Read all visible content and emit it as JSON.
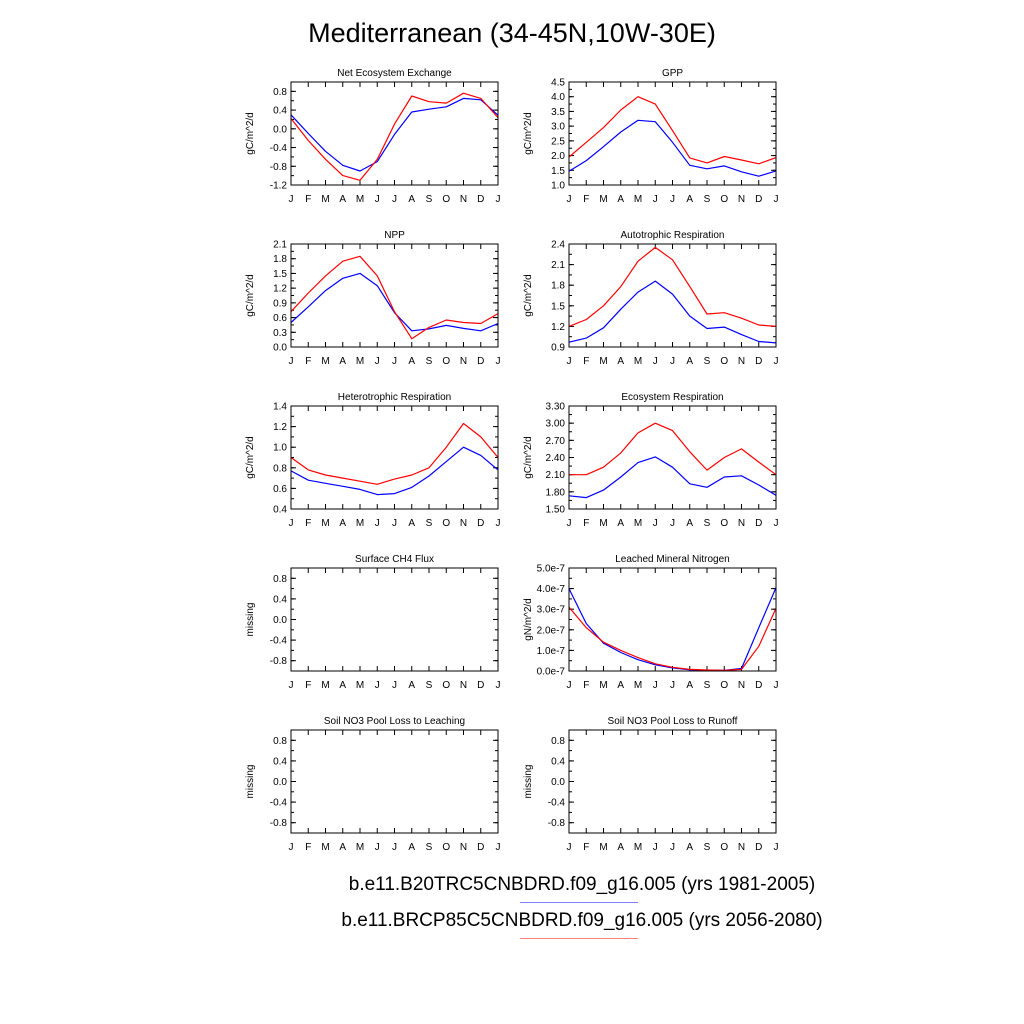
{
  "title": "Mediterranean (34-45N,10W-30E)",
  "months": [
    "J",
    "F",
    "M",
    "A",
    "M",
    "J",
    "J",
    "A",
    "S",
    "O",
    "N",
    "D",
    "J"
  ],
  "colors": {
    "case1": "#0000ff",
    "case2": "#ff0000",
    "legend1": "#8080ff",
    "legend2": "#ff8080",
    "axis": "#000000"
  },
  "legend": {
    "case1_label": "b.e11.B20TRC5CNBDRD.f09_g16.005 (yrs 1981-2005)",
    "case2_label": "b.e11.BRCP85C5CNBDRD.f09_g16.005 (yrs 2056-2080)"
  },
  "chart_data": [
    {
      "type": "line",
      "title": "Net Ecosystem Exchange",
      "ylabel": "gC/m^2/d",
      "ylim": [
        -1.2,
        1.0
      ],
      "yticks": [
        -1.2,
        -0.8,
        -0.4,
        0,
        0.4,
        0.8
      ],
      "yticklabels": [
        "-1.2",
        "-0.8",
        "-0.4",
        "0.0",
        "0.4",
        "0.8"
      ],
      "series": [
        {
          "name": "b.e11.B20TRC5CNBDRD.f09_g16.005 (yrs 1981-2005)",
          "values": [
            0.3,
            -0.1,
            -0.48,
            -0.78,
            -0.9,
            -0.7,
            -0.12,
            0.36,
            0.42,
            0.47,
            0.65,
            0.62,
            0.29
          ]
        },
        {
          "name": "b.e11.BRCP85C5CNBDRD.f09_g16.005 (yrs 2056-2080)",
          "values": [
            0.22,
            -0.25,
            -0.65,
            -1.0,
            -1.1,
            -0.65,
            0.1,
            0.7,
            0.58,
            0.55,
            0.76,
            0.65,
            0.24
          ]
        }
      ]
    },
    {
      "type": "line",
      "title": "GPP",
      "ylabel": "gC/m^2/d",
      "ylim": [
        1.0,
        4.5
      ],
      "yticks": [
        1.0,
        1.5,
        2.0,
        2.5,
        3.0,
        3.5,
        4.0,
        4.5
      ],
      "yticklabels": [
        "1.0",
        "1.5",
        "2.0",
        "2.5",
        "3.0",
        "3.5",
        "4.0",
        "4.5"
      ],
      "series": [
        {
          "name": "b.e11.B20TRC5CNBDRD.f09_g16.005 (yrs 1981-2005)",
          "values": [
            1.47,
            1.83,
            2.3,
            2.8,
            3.2,
            3.15,
            2.45,
            1.67,
            1.55,
            1.65,
            1.45,
            1.3,
            1.48
          ]
        },
        {
          "name": "b.e11.BRCP85C5CNBDRD.f09_g16.005 (yrs 2056-2080)",
          "values": [
            1.95,
            2.45,
            2.95,
            3.55,
            4.0,
            3.75,
            2.85,
            1.92,
            1.75,
            1.97,
            1.85,
            1.72,
            1.93
          ]
        }
      ]
    },
    {
      "type": "line",
      "title": "NPP",
      "ylabel": "gC/m^2/d",
      "ylim": [
        0.0,
        2.1
      ],
      "yticks": [
        0,
        0.3,
        0.6,
        0.9,
        1.2,
        1.5,
        1.8,
        2.1
      ],
      "yticklabels": [
        "0.0",
        "0.3",
        "0.6",
        "0.9",
        "1.2",
        "1.5",
        "1.8",
        "2.1"
      ],
      "series": [
        {
          "name": "b.e11.B20TRC5CNBDRD.f09_g16.005 (yrs 1981-2005)",
          "values": [
            0.5,
            0.82,
            1.15,
            1.4,
            1.5,
            1.25,
            0.7,
            0.33,
            0.37,
            0.44,
            0.38,
            0.33,
            0.48
          ]
        },
        {
          "name": "b.e11.BRCP85C5CNBDRD.f09_g16.005 (yrs 2056-2080)",
          "values": [
            0.72,
            1.1,
            1.45,
            1.75,
            1.85,
            1.45,
            0.72,
            0.17,
            0.4,
            0.55,
            0.5,
            0.48,
            0.68
          ]
        }
      ]
    },
    {
      "type": "line",
      "title": "Autotrophic Respiration",
      "ylabel": "gC/m^2/d",
      "ylim": [
        0.9,
        2.4
      ],
      "yticks": [
        0.9,
        1.2,
        1.5,
        1.8,
        2.1,
        2.4
      ],
      "yticklabels": [
        "0.9",
        "1.2",
        "1.5",
        "1.8",
        "2.1",
        "2.4"
      ],
      "series": [
        {
          "name": "b.e11.B20TRC5CNBDRD.f09_g16.005 (yrs 1981-2005)",
          "values": [
            0.97,
            1.03,
            1.18,
            1.45,
            1.7,
            1.86,
            1.67,
            1.35,
            1.17,
            1.19,
            1.08,
            0.98,
            0.96
          ]
        },
        {
          "name": "b.e11.BRCP85C5CNBDRD.f09_g16.005 (yrs 2056-2080)",
          "values": [
            1.2,
            1.3,
            1.5,
            1.78,
            2.15,
            2.35,
            2.17,
            1.78,
            1.38,
            1.4,
            1.32,
            1.22,
            1.2
          ]
        }
      ]
    },
    {
      "type": "line",
      "title": "Heterotrophic Respiration",
      "ylabel": "gC/m^2/d",
      "ylim": [
        0.4,
        1.4
      ],
      "yticks": [
        0.4,
        0.6,
        0.8,
        1.0,
        1.2,
        1.4
      ],
      "yticklabels": [
        "0.4",
        "0.6",
        "0.8",
        "1.0",
        "1.2",
        "1.4"
      ],
      "series": [
        {
          "name": "b.e11.B20TRC5CNBDRD.f09_g16.005 (yrs 1981-2005)",
          "values": [
            0.77,
            0.68,
            0.65,
            0.62,
            0.59,
            0.54,
            0.55,
            0.61,
            0.72,
            0.86,
            1.0,
            0.92,
            0.78
          ]
        },
        {
          "name": "b.e11.BRCP85C5CNBDRD.f09_g16.005 (yrs 2056-2080)",
          "values": [
            0.9,
            0.78,
            0.73,
            0.7,
            0.67,
            0.64,
            0.69,
            0.73,
            0.8,
            1.0,
            1.23,
            1.1,
            0.9
          ]
        }
      ]
    },
    {
      "type": "line",
      "title": "Ecosystem Respiration",
      "ylabel": "gC/m^2/d",
      "ylim": [
        1.5,
        3.3
      ],
      "yticks": [
        1.5,
        1.8,
        2.1,
        2.4,
        2.7,
        3.0,
        3.3
      ],
      "yticklabels": [
        "1.50",
        "1.80",
        "2.10",
        "2.40",
        "2.70",
        "3.00",
        "3.30"
      ],
      "series": [
        {
          "name": "b.e11.B20TRC5CNBDRD.f09_g16.005 (yrs 1981-2005)",
          "values": [
            1.73,
            1.7,
            1.83,
            2.06,
            2.31,
            2.41,
            2.23,
            1.94,
            1.88,
            2.06,
            2.08,
            1.92,
            1.74
          ]
        },
        {
          "name": "b.e11.BRCP85C5CNBDRD.f09_g16.005 (yrs 2056-2080)",
          "values": [
            2.1,
            2.1,
            2.23,
            2.48,
            2.83,
            3.0,
            2.87,
            2.5,
            2.18,
            2.4,
            2.55,
            2.32,
            2.1
          ]
        }
      ]
    },
    {
      "type": "line",
      "title": "Surface CH4 Flux",
      "ylabel": "missing",
      "ylim": [
        -1.0,
        1.0
      ],
      "yticks": [
        -0.8,
        -0.4,
        0,
        0.4,
        0.8
      ],
      "yticklabels": [
        "-0.8",
        "-0.4",
        "0.0",
        "0.4",
        "0.8"
      ],
      "series": []
    },
    {
      "type": "line",
      "title": "Leached Mineral Nitrogen",
      "ylabel": "gN/m^2/d",
      "ylim": [
        0,
        5e-07
      ],
      "yticks": [
        0,
        1e-07,
        2e-07,
        3e-07,
        4e-07,
        5e-07
      ],
      "yticklabels": [
        "0.0e-7",
        "1.0e-7",
        "2.0e-7",
        "3.0e-7",
        "4.0e-7",
        "5.0e-7"
      ],
      "series": [
        {
          "name": "b.e11.B20TRC5CNBDRD.f09_g16.005 (yrs 1981-2005)",
          "values": [
            4e-07,
            2.3e-07,
            1.35e-07,
            9e-08,
            5.5e-08,
            3e-08,
            1.5e-08,
            6e-09,
            4e-09,
            3e-09,
            1.2e-08,
            2.1e-07,
            4.05e-07
          ]
        },
        {
          "name": "b.e11.BRCP85C5CNBDRD.f09_g16.005 (yrs 2056-2080)",
          "values": [
            3.1e-07,
            2.1e-07,
            1.4e-07,
            1e-07,
            6.5e-08,
            3.5e-08,
            1.8e-08,
            8e-09,
            5e-09,
            3e-09,
            8e-09,
            1.2e-07,
            3.05e-07
          ]
        }
      ]
    },
    {
      "type": "line",
      "title": "Soil NO3 Pool Loss to Leaching",
      "ylabel": "missing",
      "ylim": [
        -1.0,
        1.0
      ],
      "yticks": [
        -0.8,
        -0.4,
        0,
        0.4,
        0.8
      ],
      "yticklabels": [
        "-0.8",
        "-0.4",
        "0.0",
        "0.4",
        "0.8"
      ],
      "series": []
    },
    {
      "type": "line",
      "title": "Soil NO3 Pool Loss to Runoff",
      "ylabel": "missing",
      "ylim": [
        -1.0,
        1.0
      ],
      "yticks": [
        -0.8,
        -0.4,
        0,
        0.4,
        0.8
      ],
      "yticklabels": [
        "-0.8",
        "-0.4",
        "0.0",
        "0.4",
        "0.8"
      ],
      "series": []
    }
  ]
}
